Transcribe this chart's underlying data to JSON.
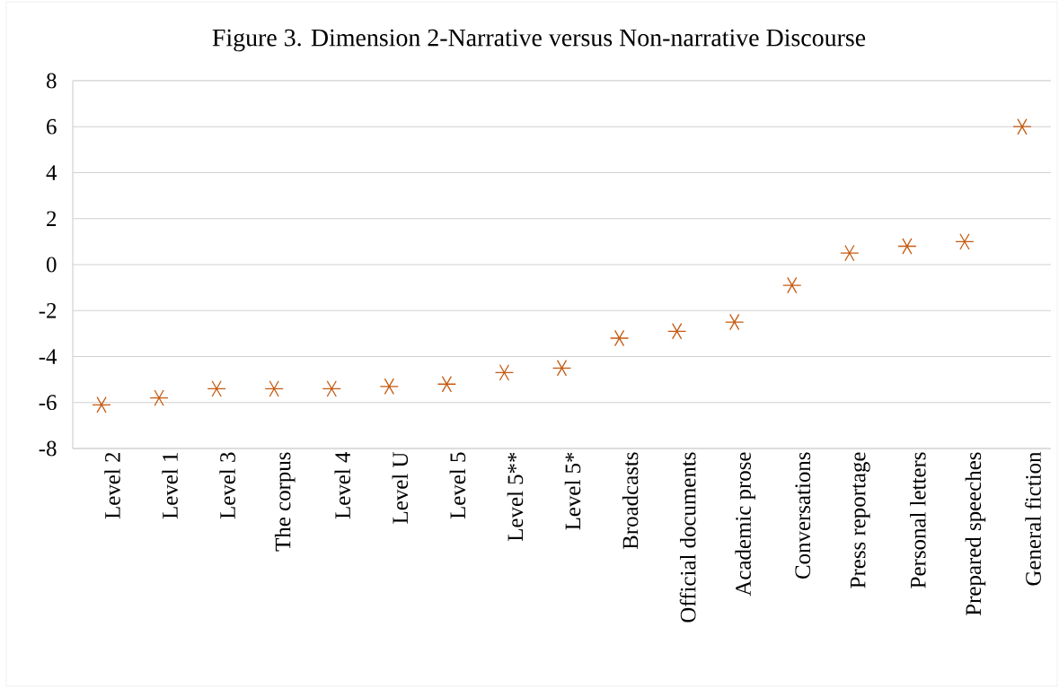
{
  "chart_data": {
    "type": "scatter",
    "title": "Figure 3. Dimension 2-Narrative versus Non-narrative Discourse",
    "categories": [
      "Level 2",
      "Level 1",
      "Level 3",
      "The corpus",
      "Level 4",
      "Level U",
      "Level 5",
      "Level 5**",
      "Level 5*",
      "Broadcasts",
      "Official documents",
      "Academic prose",
      "Conversations",
      "Press reportage",
      "Personal letters",
      "Prepared speeches",
      "General fiction"
    ],
    "values": [
      -6.1,
      -5.8,
      -5.4,
      -5.4,
      -5.4,
      -5.3,
      -5.2,
      -4.7,
      -4.5,
      -3.2,
      -2.9,
      -2.5,
      -0.9,
      0.5,
      0.8,
      1.0,
      6.0
    ],
    "color": "#c55a11",
    "marker": "cross",
    "ylim": [
      -8,
      8
    ],
    "yticks": [
      -8,
      -6,
      -4,
      -2,
      0,
      2,
      4,
      6,
      8
    ],
    "grid": "y"
  }
}
